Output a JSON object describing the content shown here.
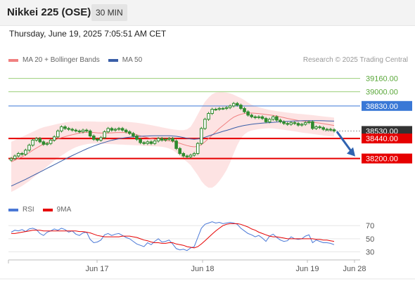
{
  "header": {
    "title": "Nikkei 225 (OSE)",
    "timeframe": "30 MIN",
    "datetime": "Thursday, June 19, 2025 7:05:51 AM CET"
  },
  "credit": "Research © 2025 Trading Central",
  "colors": {
    "candle": "#2e8b2e",
    "bollinger_fill": "#fde3e3",
    "ma20": "#f08080",
    "ma50": "#3a5ea8",
    "resistance_green": "#9bcf7a",
    "pivot_blue": "#3a78d6",
    "support_red": "#e60000",
    "current_price": "#333333",
    "arrow": "#2f63b0",
    "rsi": "#4a78d6",
    "rsi_ma": "#e60000"
  },
  "chart_data": [
    {
      "type": "candlestick",
      "legend": [
        {
          "label": "MA 20 + Bollinger Bands",
          "color": "#f08080"
        },
        {
          "label": "MA 50",
          "color": "#3a5ea8"
        }
      ],
      "x_ticks": [
        "Jun 17",
        "Jun 18",
        "Jun 19",
        "Jun 28"
      ],
      "ylim": [
        37700,
        39300
      ],
      "levels": [
        {
          "value": 39160,
          "label": "39160.00",
          "kind": "resistance"
        },
        {
          "value": 39000,
          "label": "39000.00",
          "kind": "resistance"
        },
        {
          "value": 38830,
          "label": "38830.00",
          "kind": "pivot"
        },
        {
          "value": 38530,
          "label": "38530.00",
          "kind": "current"
        },
        {
          "value": 38440,
          "label": "38440.00",
          "kind": "support"
        },
        {
          "value": 38200,
          "label": "38200.00",
          "kind": "support"
        }
      ],
      "close": [
        38200,
        38230,
        38260,
        38250,
        38300,
        38360,
        38420,
        38440,
        38400,
        38370,
        38380,
        38420,
        38460,
        38530,
        38580,
        38560,
        38550,
        38540,
        38530,
        38520,
        38540,
        38530,
        38470,
        38430,
        38420,
        38450,
        38520,
        38560,
        38540,
        38550,
        38560,
        38540,
        38520,
        38500,
        38470,
        38430,
        38390,
        38380,
        38400,
        38380,
        38410,
        38440,
        38420,
        38430,
        38440,
        38410,
        38320,
        38260,
        38230,
        38220,
        38240,
        38260,
        38380,
        38560,
        38670,
        38740,
        38790,
        38790,
        38800,
        38800,
        38810,
        38830,
        38860,
        38840,
        38800,
        38760,
        38720,
        38700,
        38690,
        38700,
        38680,
        38640,
        38670,
        38700,
        38660,
        38640,
        38620,
        38610,
        38630,
        38620,
        38600,
        38610,
        38630,
        38640,
        38560,
        38580,
        38570,
        38550,
        38550,
        38545,
        38530
      ],
      "ma20": [
        38160,
        38180,
        38200,
        38220,
        38245,
        38270,
        38300,
        38325,
        38350,
        38370,
        38390,
        38405,
        38420,
        38435,
        38450,
        38462,
        38475,
        38485,
        38495,
        38505,
        38510,
        38515,
        38515,
        38512,
        38508,
        38505,
        38505,
        38506,
        38508,
        38510,
        38512,
        38512,
        38510,
        38505,
        38495,
        38485,
        38472,
        38460,
        38450,
        38440,
        38432,
        38425,
        38420,
        38416,
        38412,
        38405,
        38395,
        38382,
        38368,
        38355,
        38345,
        38340,
        38345,
        38365,
        38400,
        38440,
        38480,
        38520,
        38560,
        38595,
        38630,
        38665,
        38695,
        38715,
        38730,
        38740,
        38745,
        38745,
        38742,
        38738,
        38733,
        38727,
        38722,
        38716,
        38708,
        38699,
        38690,
        38680,
        38672,
        38664,
        38656,
        38650,
        38646,
        38642,
        38636,
        38630,
        38624,
        38617,
        38610,
        38603,
        38596
      ],
      "bb_upper": [
        38400,
        38420,
        38440,
        38460,
        38480,
        38500,
        38520,
        38540,
        38560,
        38575,
        38585,
        38595,
        38605,
        38615,
        38625,
        38632,
        38638,
        38642,
        38645,
        38646,
        38646,
        38645,
        38644,
        38643,
        38641,
        38640,
        38640,
        38641,
        38642,
        38643,
        38643,
        38642,
        38640,
        38637,
        38633,
        38628,
        38622,
        38615,
        38608,
        38600,
        38592,
        38583,
        38574,
        38565,
        38557,
        38550,
        38545,
        38540,
        38540,
        38550,
        38580,
        38650,
        38730,
        38810,
        38880,
        38930,
        38970,
        38990,
        38995,
        38995,
        38990,
        38980,
        38965,
        38945,
        38925,
        38900,
        38870,
        38845,
        38828,
        38815,
        38803,
        38792,
        38782,
        38775,
        38768,
        38762,
        38756,
        38750,
        38745,
        38740,
        38736,
        38732,
        38728,
        38724,
        38720,
        38715,
        38710,
        38705,
        38700,
        38695,
        38690
      ],
      "bb_lower": [
        37800,
        37820,
        37845,
        37870,
        37900,
        37930,
        37965,
        38000,
        38035,
        38070,
        38105,
        38140,
        38175,
        38205,
        38235,
        38262,
        38290,
        38315,
        38335,
        38350,
        38362,
        38372,
        38378,
        38380,
        38380,
        38378,
        38376,
        38374,
        38372,
        38370,
        38368,
        38366,
        38364,
        38362,
        38360,
        38358,
        38355,
        38352,
        38350,
        38348,
        38346,
        38344,
        38340,
        38332,
        38320,
        38300,
        38270,
        38230,
        38190,
        38160,
        38120,
        38060,
        38000,
        37930,
        37880,
        37850,
        37850,
        37880,
        37930,
        37990,
        38060,
        38150,
        38260,
        38360,
        38440,
        38490,
        38520,
        38535,
        38545,
        38552,
        38557,
        38560,
        38562,
        38560,
        38555,
        38550,
        38545,
        38538,
        38532,
        38525,
        38518,
        38510,
        38505,
        38500,
        38494,
        38488,
        38482,
        38476,
        38470,
        38465,
        38460
      ],
      "ma50": [
        37870,
        37890,
        37910,
        37930,
        37950,
        37972,
        37994,
        38016,
        38038,
        38060,
        38082,
        38104,
        38126,
        38148,
        38170,
        38192,
        38214,
        38235,
        38255,
        38275,
        38295,
        38315,
        38333,
        38350,
        38365,
        38380,
        38393,
        38406,
        38418,
        38428,
        38437,
        38444,
        38450,
        38455,
        38460,
        38463,
        38466,
        38468,
        38470,
        38471,
        38472,
        38473,
        38473,
        38473,
        38472,
        38470,
        38466,
        38460,
        38452,
        38442,
        38434,
        38430,
        38434,
        38442,
        38455,
        38470,
        38484,
        38498,
        38512,
        38525,
        38537,
        38550,
        38564,
        38577,
        38588,
        38597,
        38604,
        38610,
        38615,
        38620,
        38624,
        38627,
        38630,
        38634,
        38637,
        38640,
        38643,
        38645,
        38647,
        38649,
        38651,
        38652,
        38653,
        38654,
        38654,
        38654,
        38653,
        38652,
        38651,
        38650,
        38648
      ]
    },
    {
      "type": "line",
      "legend": [
        {
          "label": "RSI",
          "color": "#4a78d6"
        },
        {
          "label": "9MA",
          "color": "#e60000"
        }
      ],
      "y_ticks": [
        "70",
        "50",
        "30"
      ],
      "ylim": [
        22,
        82
      ],
      "rsi": [
        60,
        63,
        62,
        64,
        61,
        65,
        66,
        64,
        58,
        55,
        60,
        62,
        65,
        63,
        66,
        64,
        60,
        62,
        57,
        55,
        59,
        60,
        49,
        44,
        45,
        48,
        56,
        58,
        55,
        57,
        58,
        55,
        52,
        50,
        46,
        42,
        40,
        38,
        44,
        41,
        46,
        50,
        45,
        46,
        48,
        42,
        35,
        33,
        34,
        32,
        36,
        38,
        52,
        66,
        72,
        74,
        76,
        74,
        75,
        73,
        74,
        75,
        74,
        72,
        66,
        62,
        58,
        56,
        53,
        55,
        51,
        46,
        54,
        57,
        52,
        48,
        46,
        47,
        53,
        50,
        49,
        50,
        54,
        56,
        44,
        48,
        46,
        44,
        44,
        43,
        41
      ],
      "ma9": [
        58,
        58,
        59,
        60,
        61,
        62,
        63,
        63,
        63,
        62,
        62,
        62,
        62,
        62,
        62,
        62,
        62,
        62,
        62,
        61,
        61,
        60,
        59,
        57,
        55,
        54,
        53,
        53,
        53,
        53,
        53,
        54,
        54,
        54,
        53,
        52,
        50,
        48,
        47,
        45,
        44,
        44,
        43,
        43,
        44,
        44,
        42,
        41,
        40,
        38,
        37,
        36,
        38,
        42,
        47,
        52,
        57,
        62,
        66,
        70,
        72,
        73,
        73,
        73,
        72,
        70,
        68,
        65,
        63,
        60,
        58,
        56,
        54,
        53,
        53,
        52,
        51,
        50,
        50,
        50,
        50,
        50,
        50,
        50,
        50,
        49,
        49,
        48,
        48,
        47,
        46
      ]
    }
  ]
}
